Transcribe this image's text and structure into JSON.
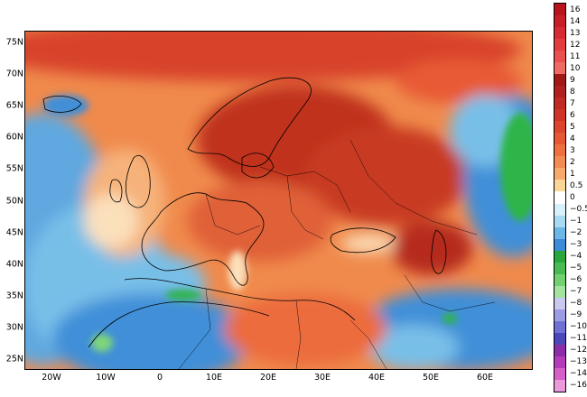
{
  "map": {
    "lat_labels": [
      "75N",
      "70N",
      "65N",
      "60N",
      "55N",
      "50N",
      "45N",
      "40N",
      "35N",
      "30N",
      "25N"
    ],
    "lon_labels": [
      "20W",
      "10W",
      "0",
      "10E",
      "20E",
      "30E",
      "40E",
      "50E",
      "60E"
    ],
    "colors": {
      "deep_red": "#b8281e",
      "red": "#d8432c",
      "red_orange": "#e85a35",
      "orange": "#f08a4c",
      "light_orange": "#f6b27a",
      "cream": "#fbe0bc",
      "white": "#ffffff",
      "light_blue": "#bfe4f6",
      "sky_blue": "#78bfe8",
      "blue": "#3f8fd8",
      "dark_blue": "#2a68c4",
      "green": "#2fb54a",
      "light_green": "#7fd67a",
      "coastline": "#000000"
    }
  },
  "legend": {
    "items": [
      {
        "label": "16",
        "color": "#b8141e"
      },
      {
        "label": "14",
        "color": "#c81e28"
      },
      {
        "label": "13",
        "color": "#d82a32"
      },
      {
        "label": "12",
        "color": "#e23c3c"
      },
      {
        "label": "11",
        "color": "#ea5050"
      },
      {
        "label": "10",
        "color": "#f06a64"
      },
      {
        "label": "9",
        "color": "#a01818"
      },
      {
        "label": "8",
        "color": "#b02020"
      },
      {
        "label": "7",
        "color": "#c02a22"
      },
      {
        "label": "6",
        "color": "#cf3426"
      },
      {
        "label": "5",
        "color": "#dc442c"
      },
      {
        "label": "4",
        "color": "#e65834"
      },
      {
        "label": "3",
        "color": "#ee7040"
      },
      {
        "label": "2",
        "color": "#f38c52"
      },
      {
        "label": "1",
        "color": "#f7aa6c"
      },
      {
        "label": "0.5",
        "color": "#fbd596"
      },
      {
        "label": "0",
        "color": "#ffffff"
      },
      {
        "label": "−0.5",
        "color": "#d8f0fa"
      },
      {
        "label": "−1",
        "color": "#a8daf2"
      },
      {
        "label": "−2",
        "color": "#6cb6e8"
      },
      {
        "label": "−3",
        "color": "#3c8cd8"
      },
      {
        "label": "−4",
        "color": "#28a83c"
      },
      {
        "label": "−5",
        "color": "#48bc52"
      },
      {
        "label": "−6",
        "color": "#72d070"
      },
      {
        "label": "−7",
        "color": "#a4e2a0"
      },
      {
        "label": "−8",
        "color": "#c8c8f0"
      },
      {
        "label": "−9",
        "color": "#9c9ce4"
      },
      {
        "label": "−10",
        "color": "#7070d4"
      },
      {
        "label": "−11",
        "color": "#4c48bc"
      },
      {
        "label": "−12",
        "color": "#8c2ca8"
      },
      {
        "label": "−13",
        "color": "#b43cb8"
      },
      {
        "label": "−14",
        "color": "#d460c8"
      },
      {
        "label": "−16",
        "color": "#ec98dc"
      }
    ]
  }
}
